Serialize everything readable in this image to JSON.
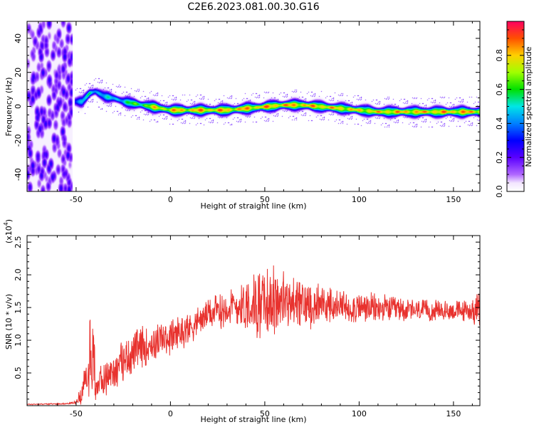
{
  "title": "C2E6.2023.081.00.30.G16",
  "colors": {
    "snr_line": "#e8322e",
    "axis": "#000000"
  },
  "chart_data": [
    {
      "type": "heatmap",
      "xlabel": "Height of straight line (km)",
      "ylabel": "Frequency (Hz)",
      "xlim": [
        -76,
        164
      ],
      "ylim": [
        -50,
        50
      ],
      "x_ticks": [
        "-50",
        "0",
        "50",
        "100",
        "150"
      ],
      "y_ticks": [
        "-40",
        "-20",
        "0",
        "20",
        "40"
      ],
      "colorbar": {
        "label": "Normalized spectral amplitude",
        "range": [
          0,
          1
        ],
        "ticks": [
          "0.0",
          "0.2",
          "0.4",
          "0.6",
          "0.8"
        ]
      },
      "noise_region_x": [
        -76,
        -52
      ],
      "ridge": {
        "x": [
          -51,
          -47,
          -43,
          -40,
          -35,
          -30,
          -25,
          -20,
          -15,
          -10,
          -5,
          0,
          10,
          20,
          30,
          40,
          50,
          60,
          70,
          80,
          90,
          100,
          110,
          120,
          130,
          140,
          150,
          160,
          164
        ],
        "y": [
          3,
          3,
          8,
          9,
          6,
          5,
          3,
          2,
          1,
          0,
          -1,
          -2,
          -2,
          -2,
          -2,
          -1,
          0,
          1,
          1,
          0,
          -1,
          -2,
          -3,
          -3,
          -3,
          -3,
          -3,
          -3,
          -3
        ],
        "peak": [
          0.45,
          0.55,
          0.6,
          0.55,
          0.55,
          0.55,
          0.6,
          0.7,
          0.75,
          0.85,
          0.9,
          0.92,
          0.95,
          0.95,
          0.95,
          0.95,
          0.96,
          0.97,
          0.96,
          0.95,
          0.92,
          0.9,
          0.92,
          0.95,
          0.95,
          0.95,
          0.96,
          0.96,
          0.96
        ]
      }
    },
    {
      "type": "line",
      "xlabel": "Height of straight line (km)",
      "ylabel": "SNR (10 * v/v)",
      "y_multiplier": "(x10",
      "y_multiplier_exp": "4",
      "xlim": [
        -76,
        164
      ],
      "ylim": [
        0,
        2.6
      ],
      "x_ticks": [
        "-50",
        "0",
        "50",
        "100",
        "150"
      ],
      "y_ticks": [
        "0.5",
        "1.0",
        "1.5",
        "2.0",
        "2.5"
      ],
      "envelope": {
        "x": [
          -76,
          -55,
          -50,
          -47,
          -45,
          -42,
          -40,
          -35,
          -30,
          -25,
          -20,
          -15,
          -10,
          -5,
          0,
          5,
          10,
          15,
          20,
          25,
          30,
          35,
          40,
          45,
          50,
          55,
          60,
          65,
          70,
          75,
          80,
          90,
          100,
          110,
          120,
          130,
          140,
          150,
          160,
          164
        ],
        "mean": [
          0.02,
          0.03,
          0.05,
          0.2,
          0.4,
          0.5,
          0.3,
          0.4,
          0.55,
          0.7,
          0.8,
          0.9,
          0.95,
          1.0,
          1.05,
          1.12,
          1.2,
          1.3,
          1.4,
          1.45,
          1.5,
          1.52,
          1.55,
          1.55,
          1.55,
          1.6,
          1.6,
          1.55,
          1.55,
          1.55,
          1.55,
          1.5,
          1.5,
          1.48,
          1.48,
          1.45,
          1.45,
          1.45,
          1.45,
          1.45
        ],
        "spread": [
          0.01,
          0.01,
          0.03,
          0.2,
          0.3,
          0.5,
          0.3,
          0.3,
          0.35,
          0.35,
          0.35,
          0.35,
          0.35,
          0.3,
          0.3,
          0.3,
          0.3,
          0.25,
          0.25,
          0.3,
          0.35,
          0.4,
          0.5,
          0.6,
          0.6,
          0.6,
          0.55,
          0.5,
          0.45,
          0.4,
          0.35,
          0.3,
          0.28,
          0.25,
          0.22,
          0.2,
          0.18,
          0.18,
          0.2,
          0.35
        ]
      }
    }
  ]
}
